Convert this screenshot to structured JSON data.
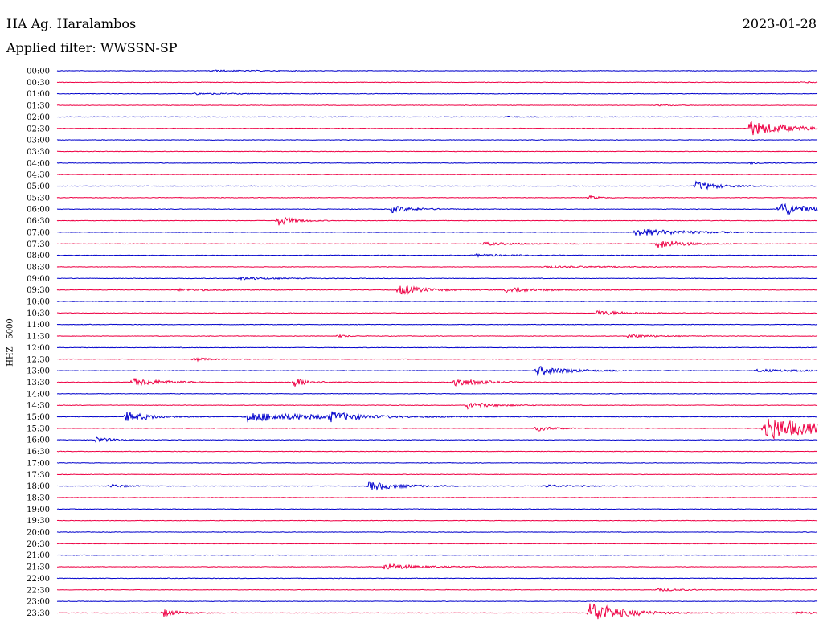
{
  "header": {
    "station": "HA Ag. Haralambos",
    "date": "2023-01-28",
    "filter": "Applied filter: WWSSN-SP"
  },
  "colors": {
    "even": "#0000cc",
    "odd": "#ee0044"
  },
  "chart_data": {
    "type": "line",
    "title": "HA Ag. Haralambos",
    "ylabel": "HHZ - 5000",
    "time_labels": [
      "00:00",
      "00:30",
      "01:00",
      "01:30",
      "02:00",
      "02:30",
      "03:00",
      "03:30",
      "04:00",
      "04:30",
      "05:00",
      "05:30",
      "06:00",
      "06:30",
      "07:00",
      "07:30",
      "08:00",
      "08:30",
      "09:00",
      "09:30",
      "10:00",
      "10:30",
      "11:00",
      "11:30",
      "12:00",
      "12:30",
      "13:00",
      "13:30",
      "14:00",
      "14:30",
      "15:00",
      "15:30",
      "16:00",
      "16:30",
      "17:00",
      "17:30",
      "18:00",
      "18:30",
      "19:00",
      "19:30",
      "20:00",
      "20:30",
      "21:00",
      "21:30",
      "22:00",
      "22:30",
      "23:00",
      "23:30"
    ],
    "series_colors": [
      "#0000cc",
      "#ee0044"
    ],
    "events": [
      {
        "trace": 0,
        "t": 0.2,
        "amp": 0.12,
        "dur": 0.06
      },
      {
        "trace": 1,
        "t": 0.98,
        "amp": 0.15,
        "dur": 0.02
      },
      {
        "trace": 2,
        "t": 0.18,
        "amp": 0.15,
        "dur": 0.06
      },
      {
        "trace": 3,
        "t": 0.79,
        "amp": 0.1,
        "dur": 0.02
      },
      {
        "trace": 4,
        "t": 0.59,
        "amp": 0.12,
        "dur": 0.02
      },
      {
        "trace": 5,
        "t": 0.91,
        "amp": 1.6,
        "dur": 0.05
      },
      {
        "trace": 8,
        "t": 0.91,
        "amp": 0.2,
        "dur": 0.02
      },
      {
        "trace": 10,
        "t": 0.84,
        "amp": 0.9,
        "dur": 0.03
      },
      {
        "trace": 11,
        "t": 0.7,
        "amp": 0.5,
        "dur": 0.01
      },
      {
        "trace": 12,
        "t": 0.44,
        "amp": 0.7,
        "dur": 0.03
      },
      {
        "trace": 12,
        "t": 0.95,
        "amp": 1.6,
        "dur": 0.03
      },
      {
        "trace": 13,
        "t": 0.29,
        "amp": 1.1,
        "dur": 0.02
      },
      {
        "trace": 14,
        "t": 0.76,
        "amp": 0.8,
        "dur": 0.06
      },
      {
        "trace": 15,
        "t": 0.56,
        "amp": 0.3,
        "dur": 0.05
      },
      {
        "trace": 15,
        "t": 0.79,
        "amp": 1.0,
        "dur": 0.03
      },
      {
        "trace": 16,
        "t": 0.55,
        "amp": 0.3,
        "dur": 0.04
      },
      {
        "trace": 17,
        "t": 0.64,
        "amp": 0.2,
        "dur": 0.08
      },
      {
        "trace": 18,
        "t": 0.24,
        "amp": 0.3,
        "dur": 0.04
      },
      {
        "trace": 19,
        "t": 0.45,
        "amp": 1.1,
        "dur": 0.03
      },
      {
        "trace": 19,
        "t": 0.59,
        "amp": 0.6,
        "dur": 0.04
      },
      {
        "trace": 19,
        "t": 0.16,
        "amp": 0.25,
        "dur": 0.05
      },
      {
        "trace": 21,
        "t": 0.71,
        "amp": 0.5,
        "dur": 0.04
      },
      {
        "trace": 23,
        "t": 0.75,
        "amp": 0.4,
        "dur": 0.03
      },
      {
        "trace": 23,
        "t": 0.37,
        "amp": 0.3,
        "dur": 0.01
      },
      {
        "trace": 25,
        "t": 0.18,
        "amp": 0.4,
        "dur": 0.02
      },
      {
        "trace": 26,
        "t": 0.63,
        "amp": 1.0,
        "dur": 0.04
      },
      {
        "trace": 26,
        "t": 0.92,
        "amp": 0.25,
        "dur": 0.08
      },
      {
        "trace": 27,
        "t": 0.1,
        "amp": 0.8,
        "dur": 0.04
      },
      {
        "trace": 27,
        "t": 0.31,
        "amp": 1.0,
        "dur": 0.02
      },
      {
        "trace": 27,
        "t": 0.52,
        "amp": 1.1,
        "dur": 0.03
      },
      {
        "trace": 29,
        "t": 0.54,
        "amp": 0.7,
        "dur": 0.03
      },
      {
        "trace": 30,
        "t": 0.09,
        "amp": 1.1,
        "dur": 0.03
      },
      {
        "trace": 30,
        "t": 0.25,
        "amp": 1.0,
        "dur": 0.1
      },
      {
        "trace": 30,
        "t": 0.36,
        "amp": 0.8,
        "dur": 0.03
      },
      {
        "trace": 31,
        "t": 0.63,
        "amp": 0.6,
        "dur": 0.02
      },
      {
        "trace": 31,
        "t": 0.93,
        "amp": 2.6,
        "dur": 0.07
      },
      {
        "trace": 32,
        "t": 0.05,
        "amp": 0.6,
        "dur": 0.02
      },
      {
        "trace": 36,
        "t": 0.07,
        "amp": 0.4,
        "dur": 0.02
      },
      {
        "trace": 36,
        "t": 0.41,
        "amp": 0.9,
        "dur": 0.04
      },
      {
        "trace": 36,
        "t": 0.64,
        "amp": 0.3,
        "dur": 0.04
      },
      {
        "trace": 43,
        "t": 0.43,
        "amp": 0.7,
        "dur": 0.04
      },
      {
        "trace": 45,
        "t": 0.79,
        "amp": 0.3,
        "dur": 0.03
      },
      {
        "trace": 47,
        "t": 0.14,
        "amp": 0.8,
        "dur": 0.02
      },
      {
        "trace": 47,
        "t": 0.7,
        "amp": 2.4,
        "dur": 0.04
      },
      {
        "trace": 47,
        "t": 0.97,
        "amp": 0.3,
        "dur": 0.03
      }
    ]
  }
}
